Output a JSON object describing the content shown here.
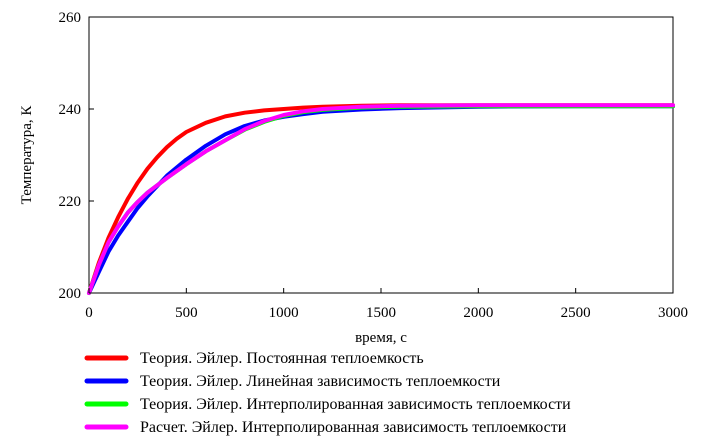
{
  "chart_data": {
    "type": "line",
    "xlabel": "время, с",
    "ylabel": "Температура, К",
    "xlim": [
      0,
      3000
    ],
    "ylim": [
      200,
      260
    ],
    "xticks": [
      0,
      500,
      1000,
      1500,
      2000,
      2500,
      3000
    ],
    "yticks": [
      200,
      220,
      240,
      260
    ],
    "grid": false,
    "legend": "bottom",
    "series": [
      {
        "name": "Теория. Эйлер. Постоянная теплоемкость",
        "color": "#ff0000",
        "x": [
          0,
          50,
          100,
          150,
          200,
          250,
          300,
          350,
          400,
          450,
          500,
          600,
          700,
          800,
          900,
          1000,
          1100,
          1200,
          1400,
          1600,
          2000,
          2500,
          3000
        ],
        "y": [
          200,
          206.5,
          212,
          216.5,
          220.5,
          224,
          227,
          229.5,
          231.7,
          233.5,
          235,
          237,
          238.4,
          239.2,
          239.7,
          240,
          240.3,
          240.5,
          240.7,
          240.8,
          240.8,
          240.8,
          240.8
        ]
      },
      {
        "name": "Теория. Эйлер. Линейная зависимость теплоемкости",
        "color": "#0000ff",
        "x": [
          0,
          50,
          100,
          150,
          200,
          250,
          300,
          400,
          500,
          600,
          700,
          800,
          900,
          1000,
          1100,
          1200,
          1400,
          1600,
          2000,
          2500,
          3000
        ],
        "y": [
          200,
          204.5,
          209,
          212.5,
          215.5,
          218.5,
          221,
          225.5,
          229,
          232,
          234.5,
          236.3,
          237.5,
          238.3,
          238.9,
          239.4,
          239.9,
          240.2,
          240.5,
          240.6,
          240.6
        ]
      },
      {
        "name": "Теория. Эйлер. Интерполированная зависимость теплоемкости",
        "color": "#00ff00",
        "x": [
          0,
          50,
          100,
          150,
          200,
          250,
          300,
          400,
          500,
          600,
          700,
          800,
          900,
          1000,
          1100,
          1200,
          1400,
          1600,
          2000,
          2500,
          3000
        ],
        "y": [
          200,
          206,
          211,
          214.5,
          217.5,
          219.8,
          221.8,
          225,
          228,
          230.8,
          233.2,
          235.5,
          237.2,
          238.5,
          239.3,
          239.8,
          240.3,
          240.5,
          240.6,
          240.6,
          240.6
        ]
      },
      {
        "name": "Расчет. Эйлер. Интерполированная зависимость теплоемкости",
        "color": "#ff00ff",
        "x": [
          0,
          50,
          100,
          150,
          200,
          250,
          300,
          400,
          500,
          600,
          700,
          800,
          900,
          1000,
          1100,
          1200,
          1400,
          1600,
          2000,
          2500,
          3000
        ],
        "y": [
          200,
          206,
          211,
          214.5,
          217.5,
          219.8,
          221.8,
          225,
          228,
          230.8,
          233.2,
          235.6,
          237.4,
          238.7,
          239.5,
          240,
          240.5,
          240.7,
          240.8,
          240.8,
          240.8
        ]
      }
    ]
  }
}
